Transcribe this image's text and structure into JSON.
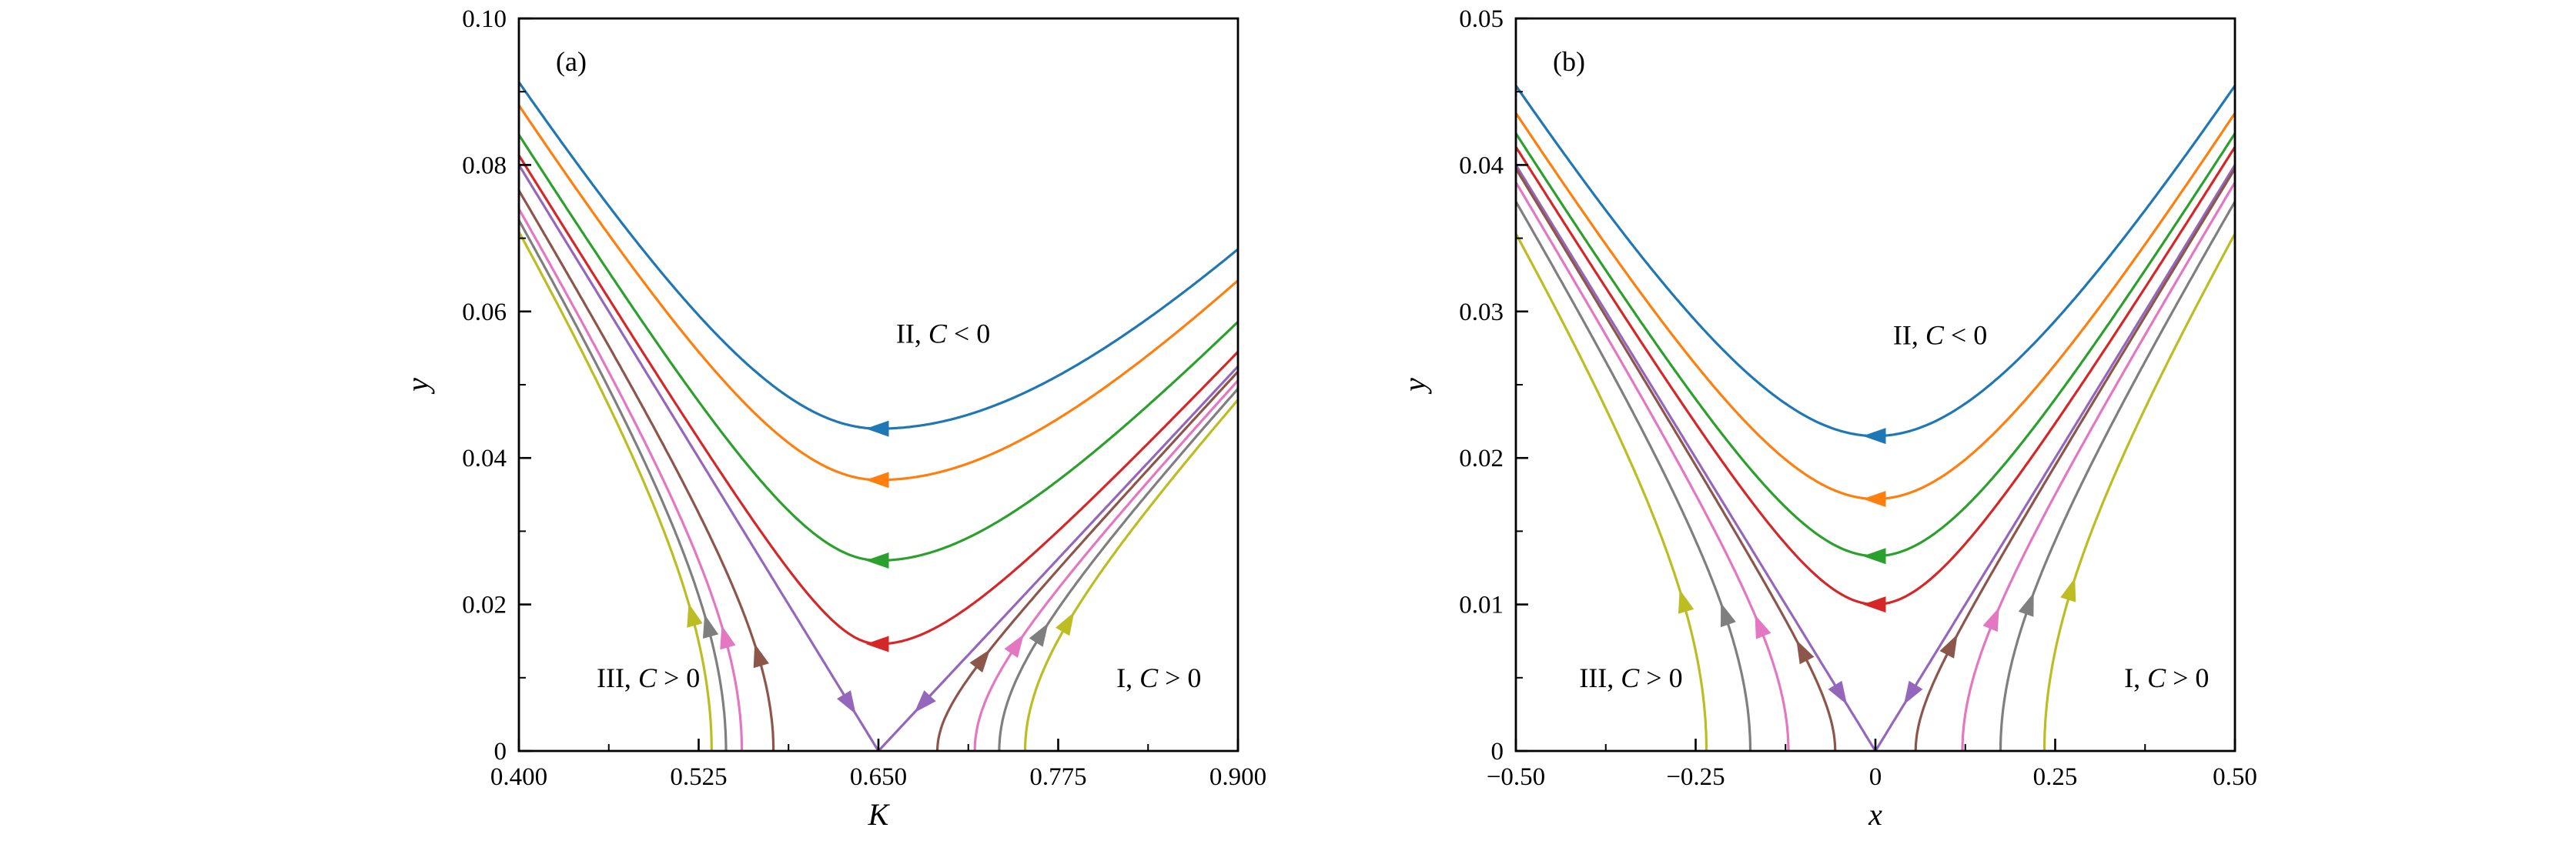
{
  "chart_data": {
    "type": "line",
    "title": "",
    "legend": "none",
    "grid": false,
    "panels": [
      {
        "id": "a",
        "panel_label": "(a)",
        "xlabel": "K",
        "ylabel": "y",
        "xlim": [
          0.4,
          0.9
        ],
        "ylim": [
          0,
          0.1
        ],
        "x_tick_values": [
          0.4,
          0.525,
          0.65,
          0.775,
          0.9
        ],
        "x_tick_labels": [
          "0.400",
          "0.525",
          "0.650",
          "0.775",
          "0.900"
        ],
        "x_minor_ticks": [
          0.4625,
          0.5875,
          0.7125,
          0.8375
        ],
        "y_tick_values": [
          0,
          0.02,
          0.04,
          0.06,
          0.08,
          0.1
        ],
        "y_tick_labels": [
          "0",
          "0.02",
          "0.04",
          "0.06",
          "0.08",
          "0.10"
        ],
        "y_minor_ticks": [
          0.01,
          0.03,
          0.05,
          0.07,
          0.09
        ],
        "vertex_x": 0.65,
        "asymptote_slope_left": 0.32,
        "asymptote_slope_right": 0.21,
        "upper_trajectories": [
          {
            "name": "blue",
            "color": "#1f77b4",
            "y_min": 0.044,
            "arrow": {
              "y": 0.044,
              "direction": "left"
            }
          },
          {
            "name": "orange",
            "color": "#ff7f0e",
            "y_min": 0.037,
            "arrow": {
              "y": 0.037,
              "direction": "left"
            }
          },
          {
            "name": "green",
            "color": "#2ca02c",
            "y_min": 0.026,
            "arrow": {
              "y": 0.026,
              "direction": "left"
            }
          },
          {
            "name": "red",
            "color": "#d62728",
            "y_min": 0.0146,
            "arrow": {
              "y": 0.0146,
              "direction": "left"
            }
          }
        ],
        "separatrix": {
          "name": "purple",
          "color": "#9467bd",
          "arrows": [
            {
              "branch": "left",
              "y": 0.0065,
              "direction": "toward-vertex"
            },
            {
              "branch": "right",
              "y": 0.0065,
              "direction": "toward-vertex"
            }
          ]
        },
        "side_trajectories": [
          {
            "name": "brown",
            "color": "#8c564b",
            "x_intercept_left": 0.577,
            "x_intercept_right": 0.691,
            "arrow_left": {
              "y": 0.013,
              "direction": "up-along-curve"
            },
            "arrow_right": {
              "y": 0.0125,
              "direction": "up-along-curve"
            }
          },
          {
            "name": "pink",
            "color": "#e377c2",
            "x_intercept_left": 0.555,
            "x_intercept_right": 0.717,
            "arrow_left": {
              "y": 0.0155,
              "direction": "up-along-curve"
            },
            "arrow_right": {
              "y": 0.0145,
              "direction": "up-along-curve"
            }
          },
          {
            "name": "gray",
            "color": "#7f7f7f",
            "x_intercept_left": 0.544,
            "x_intercept_right": 0.734,
            "arrow_left": {
              "y": 0.017,
              "direction": "up-along-curve"
            },
            "arrow_right": {
              "y": 0.016,
              "direction": "up-along-curve"
            }
          },
          {
            "name": "olive",
            "color": "#bcbd22",
            "x_intercept_left": 0.534,
            "x_intercept_right": 0.752,
            "arrow_left": {
              "y": 0.0185,
              "direction": "up-along-curve"
            },
            "arrow_right": {
              "y": 0.0175,
              "direction": "up-along-curve"
            }
          }
        ],
        "annotations": [
          {
            "id": "region-II",
            "x": 0.695,
            "y": 0.057,
            "segments": [
              {
                "text": "II, ",
                "italic": false
              },
              {
                "text": "C",
                "italic": true
              },
              {
                "text": " < 0",
                "italic": false
              }
            ]
          },
          {
            "id": "region-III",
            "x": 0.49,
            "y": 0.01,
            "segments": [
              {
                "text": "III, ",
                "italic": false
              },
              {
                "text": "C",
                "italic": true
              },
              {
                "text": " > 0",
                "italic": false
              }
            ]
          },
          {
            "id": "region-I",
            "x": 0.845,
            "y": 0.01,
            "segments": [
              {
                "text": "I, ",
                "italic": false
              },
              {
                "text": "C",
                "italic": true
              },
              {
                "text": " > 0",
                "italic": false
              }
            ]
          }
        ]
      },
      {
        "id": "b",
        "panel_label": "(b)",
        "xlabel": "x",
        "ylabel": "y",
        "xlim": [
          -0.5,
          0.5
        ],
        "ylim": [
          0,
          0.05
        ],
        "x_tick_values": [
          -0.5,
          -0.25,
          0,
          0.25,
          0.5
        ],
        "x_tick_labels": [
          "−0.50",
          "−0.25",
          "0",
          "0.25",
          "0.50"
        ],
        "x_minor_ticks": [
          -0.375,
          -0.125,
          0.125,
          0.375
        ],
        "y_tick_values": [
          0,
          0.01,
          0.02,
          0.03,
          0.04,
          0.05
        ],
        "y_tick_labels": [
          "0",
          "0.01",
          "0.02",
          "0.03",
          "0.04",
          "0.05"
        ],
        "y_minor_ticks": [
          0.005,
          0.015,
          0.025,
          0.035,
          0.045
        ],
        "vertex_x": 0,
        "asymptote_slope_left": 0.08,
        "asymptote_slope_right": 0.08,
        "upper_trajectories": [
          {
            "name": "blue",
            "color": "#1f77b4",
            "y_min": 0.0215,
            "arrow": {
              "y": 0.0215,
              "direction": "left"
            }
          },
          {
            "name": "orange",
            "color": "#ff7f0e",
            "y_min": 0.0172,
            "arrow": {
              "y": 0.0172,
              "direction": "left"
            }
          },
          {
            "name": "green",
            "color": "#2ca02c",
            "y_min": 0.0133,
            "arrow": {
              "y": 0.0133,
              "direction": "left"
            }
          },
          {
            "name": "red",
            "color": "#d62728",
            "y_min": 0.01,
            "arrow": {
              "y": 0.01,
              "direction": "left"
            }
          }
        ],
        "separatrix": {
          "name": "purple",
          "color": "#9467bd",
          "arrows": [
            {
              "branch": "left",
              "y": 0.0039,
              "direction": "toward-vertex"
            },
            {
              "branch": "right",
              "y": 0.0039,
              "direction": "toward-vertex"
            }
          ]
        },
        "side_trajectories": [
          {
            "name": "brown",
            "color": "#8c564b",
            "x_intercept_left": -0.056,
            "x_intercept_right": 0.056,
            "arrow_left": {
              "y": 0.0068,
              "direction": "up-along-curve"
            },
            "arrow_right": {
              "y": 0.0072,
              "direction": "up-along-curve"
            }
          },
          {
            "name": "pink",
            "color": "#e377c2",
            "x_intercept_left": -0.121,
            "x_intercept_right": 0.121,
            "arrow_left": {
              "y": 0.0085,
              "direction": "up-along-curve"
            },
            "arrow_right": {
              "y": 0.009,
              "direction": "up-along-curve"
            }
          },
          {
            "name": "gray",
            "color": "#7f7f7f",
            "x_intercept_left": -0.174,
            "x_intercept_right": 0.174,
            "arrow_left": {
              "y": 0.0093,
              "direction": "up-along-curve"
            },
            "arrow_right": {
              "y": 0.01,
              "direction": "up-along-curve"
            }
          },
          {
            "name": "olive",
            "color": "#bcbd22",
            "x_intercept_left": -0.235,
            "x_intercept_right": 0.235,
            "arrow_left": {
              "y": 0.0102,
              "direction": "up-along-curve"
            },
            "arrow_right": {
              "y": 0.011,
              "direction": "up-along-curve"
            }
          }
        ],
        "annotations": [
          {
            "id": "region-II",
            "x": 0.09,
            "y": 0.0284,
            "segments": [
              {
                "text": "II, ",
                "italic": false
              },
              {
                "text": "C",
                "italic": true
              },
              {
                "text": " < 0",
                "italic": false
              }
            ]
          },
          {
            "id": "region-III",
            "x": -0.34,
            "y": 0.005,
            "segments": [
              {
                "text": "III, ",
                "italic": false
              },
              {
                "text": "C",
                "italic": true
              },
              {
                "text": " > 0",
                "italic": false
              }
            ]
          },
          {
            "id": "region-I",
            "x": 0.405,
            "y": 0.005,
            "segments": [
              {
                "text": "I, ",
                "italic": false
              },
              {
                "text": "C",
                "italic": true
              },
              {
                "text": " > 0",
                "italic": false
              }
            ]
          }
        ]
      }
    ],
    "style": {
      "frame_color": "#000000",
      "text_color": "#000000",
      "background": "#ffffff"
    }
  }
}
